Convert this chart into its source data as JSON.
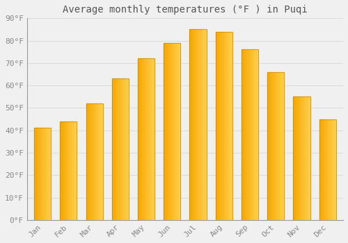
{
  "title": "Average monthly temperatures (°F ) in Puqi",
  "months": [
    "Jan",
    "Feb",
    "Mar",
    "Apr",
    "May",
    "Jun",
    "Jul",
    "Aug",
    "Sep",
    "Oct",
    "Nov",
    "Dec"
  ],
  "values": [
    41,
    44,
    52,
    63,
    72,
    79,
    85,
    84,
    76,
    66,
    55,
    45
  ],
  "bar_color_left": "#F5A800",
  "bar_color_right": "#FFD050",
  "bar_edge_color": "#C8880A",
  "background_color": "#F0F0F0",
  "grid_color": "#DDDDDD",
  "ylim": [
    0,
    90
  ],
  "yticks": [
    0,
    10,
    20,
    30,
    40,
    50,
    60,
    70,
    80,
    90
  ],
  "ytick_labels": [
    "0°F",
    "10°F",
    "20°F",
    "30°F",
    "40°F",
    "50°F",
    "60°F",
    "70°F",
    "80°F",
    "90°F"
  ],
  "title_fontsize": 10,
  "tick_fontsize": 8,
  "title_color": "#555555",
  "tick_color": "#888888",
  "spine_color": "#999999",
  "bar_width": 0.65
}
